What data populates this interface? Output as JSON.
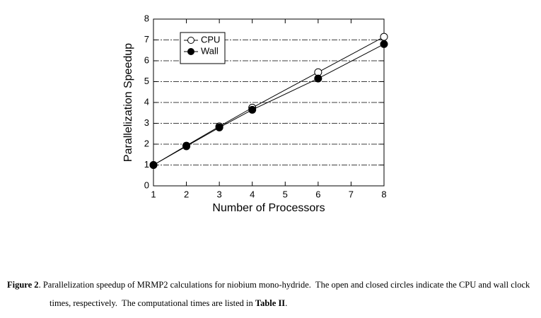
{
  "chart_data": {
    "type": "line",
    "xlabel": "Number of Processors",
    "ylabel": "Parallelization Speedup",
    "x": [
      1,
      2,
      3,
      4,
      6,
      8
    ],
    "series": [
      {
        "name": "CPU",
        "color": "#000000",
        "marker": "open",
        "values": [
          1,
          1.93,
          2.85,
          3.75,
          5.45,
          7.15
        ]
      },
      {
        "name": "Wall",
        "color": "#000000",
        "marker": "filled",
        "values": [
          1,
          1.9,
          2.8,
          3.65,
          5.15,
          6.8
        ]
      }
    ],
    "xlim": [
      1,
      8
    ],
    "xticks": [
      1,
      2,
      3,
      4,
      5,
      6,
      7,
      8
    ],
    "ylim": [
      0,
      8
    ],
    "yticks": [
      0,
      1,
      2,
      3,
      4,
      5,
      6,
      7,
      8
    ],
    "grid": true,
    "legend": "upper left"
  },
  "caption": {
    "label": "Figure 2",
    "text": ". Parallelization speedup of MRMP2 calculations for niobium mono-hydride.  The open and closed circles indicate the CPU and wall clock times, respectively.  The computational times are listed in ",
    "ref": "Table II",
    "end": "."
  }
}
